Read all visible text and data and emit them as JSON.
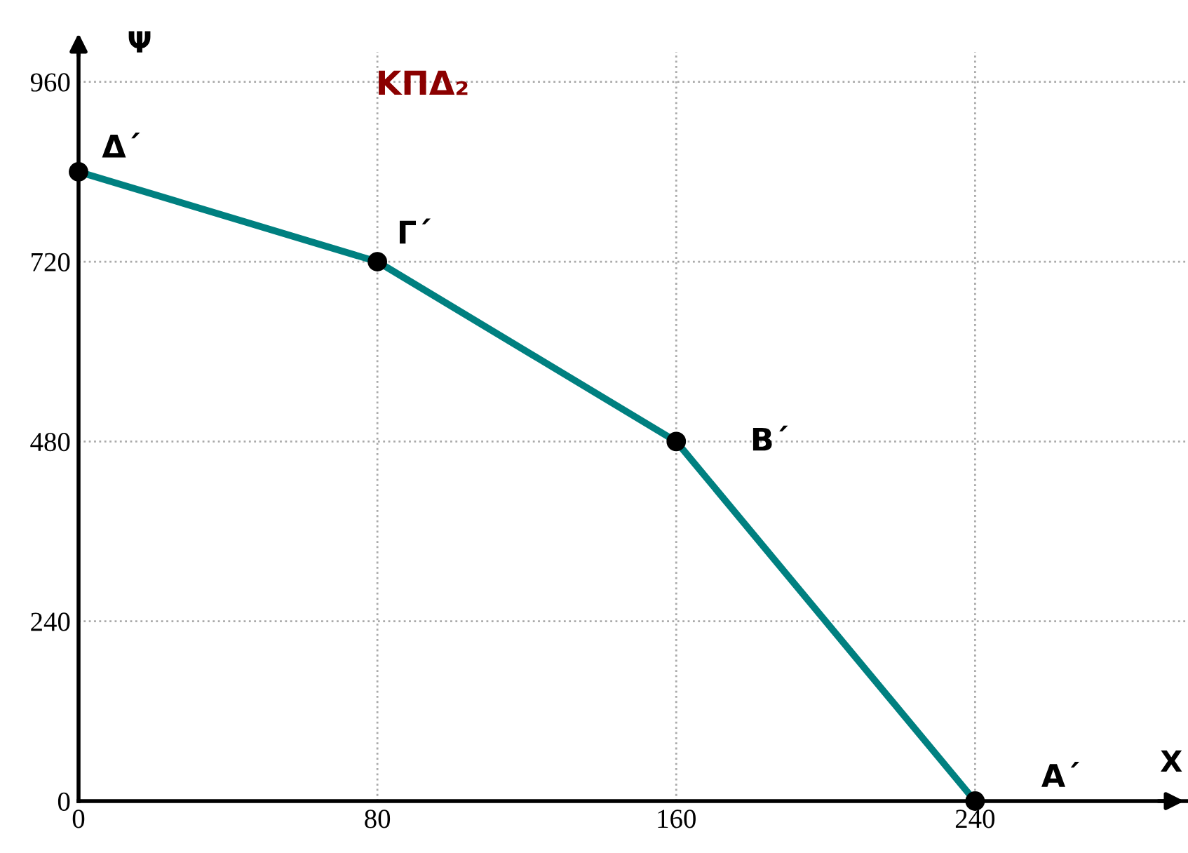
{
  "chart_data": {
    "type": "line",
    "title": "ΚΠΔ₂",
    "xlabel": "Χ",
    "ylabel": "Ψ",
    "x": [
      0,
      80,
      160,
      240
    ],
    "series": [
      {
        "color": "#008080",
        "values": [
          840,
          720,
          480,
          0
        ]
      }
    ],
    "marker": "circle",
    "line_style": "solid",
    "xlim": [
      0,
      297
    ],
    "ylim": [
      0,
      1000
    ],
    "xticks": [
      0,
      80,
      160,
      240
    ],
    "yticks": [
      0,
      240,
      480,
      720,
      960
    ],
    "grid": true,
    "annotations": [
      {
        "text": "Δ΄",
        "x": 0,
        "y": 840
      },
      {
        "text": "Γ΄",
        "x": 80,
        "y": 720
      },
      {
        "text": "Β΄",
        "x": 160,
        "y": 480
      },
      {
        "text": "Α΄",
        "x": 240,
        "y": 0
      }
    ]
  }
}
